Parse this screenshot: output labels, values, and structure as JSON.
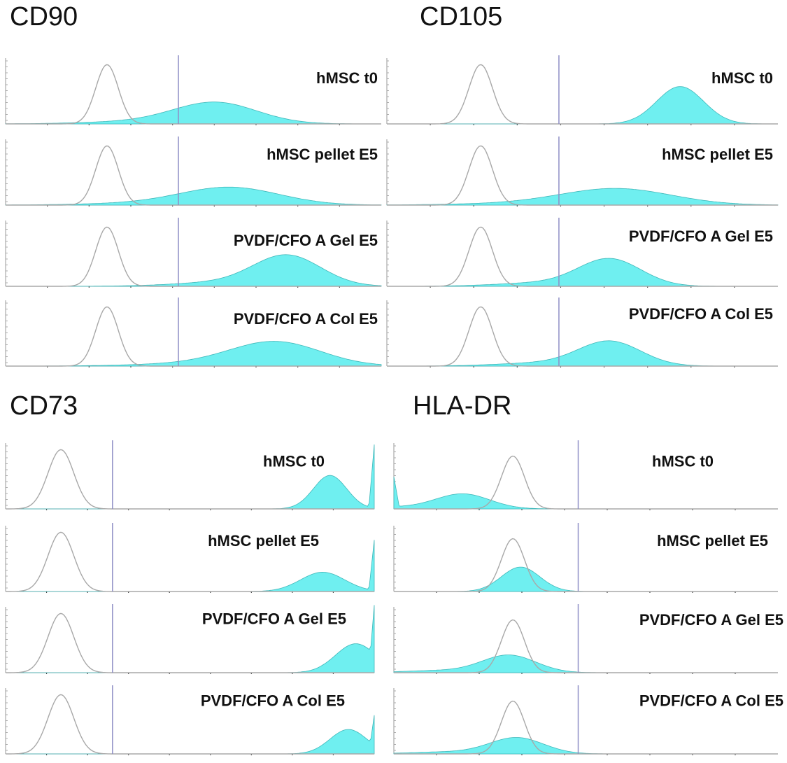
{
  "colors": {
    "fill": "#6FEFF0",
    "fill_stroke": "#3fb7b9",
    "control": "#a8a8a8",
    "gate": "#8f8fc6",
    "axis": "#9a9a9a"
  },
  "chart_data": [
    {
      "type": "area",
      "title": "CD90",
      "x_range": [
        0,
        1
      ],
      "gate": 0.46,
      "rows": [
        {
          "label": "hMSC t0",
          "control": {
            "mu": 0.27,
            "sigma": 0.03,
            "amp": 0.92
          },
          "sample": {
            "mu": 0.56,
            "sigma": 0.11,
            "amp": 0.32
          }
        },
        {
          "label": "hMSC pellet E5",
          "control": {
            "mu": 0.27,
            "sigma": 0.03,
            "amp": 0.92
          },
          "sample": {
            "mu": 0.6,
            "sigma": 0.13,
            "amp": 0.26
          }
        },
        {
          "label": "PVDF/CFO A  Gel E5",
          "control": {
            "mu": 0.27,
            "sigma": 0.03,
            "amp": 0.92
          },
          "sample": {
            "mu": 0.75,
            "sigma": 0.09,
            "amp": 0.47
          }
        },
        {
          "label": "PVDF/CFO A  Col E5",
          "control": {
            "mu": 0.27,
            "sigma": 0.03,
            "amp": 0.92
          },
          "sample": {
            "mu": 0.72,
            "sigma": 0.12,
            "amp": 0.36
          }
        }
      ]
    },
    {
      "type": "area",
      "title": "CD105",
      "x_range": [
        0,
        1
      ],
      "gate": 0.44,
      "rows": [
        {
          "label": "hMSC t0",
          "control": {
            "mu": 0.24,
            "sigma": 0.03,
            "amp": 0.92
          },
          "sample": {
            "mu": 0.75,
            "sigma": 0.06,
            "amp": 0.58
          }
        },
        {
          "label": "hMSC pellet E5",
          "control": {
            "mu": 0.24,
            "sigma": 0.03,
            "amp": 0.92
          },
          "sample": {
            "mu": 0.59,
            "sigma": 0.14,
            "amp": 0.24
          }
        },
        {
          "label": "PVDF/CFO A  Gel E5",
          "control": {
            "mu": 0.24,
            "sigma": 0.03,
            "amp": 0.92
          },
          "sample": {
            "mu": 0.57,
            "sigma": 0.08,
            "amp": 0.42
          }
        },
        {
          "label": "PVDF/CFO A  Col E5",
          "control": {
            "mu": 0.24,
            "sigma": 0.03,
            "amp": 0.92
          },
          "sample": {
            "mu": 0.57,
            "sigma": 0.08,
            "amp": 0.38
          }
        }
      ]
    },
    {
      "type": "area",
      "title": "CD73",
      "x_range": [
        0,
        1
      ],
      "gate": 0.29,
      "rows": [
        {
          "label": "hMSC t0",
          "control": {
            "mu": 0.15,
            "sigma": 0.035,
            "amp": 0.92
          },
          "sample": {
            "mu": 0.88,
            "sigma": 0.045,
            "amp": 0.52,
            "spike": 1.0
          }
        },
        {
          "label": "hMSC pellet E5",
          "control": {
            "mu": 0.15,
            "sigma": 0.035,
            "amp": 0.92
          },
          "sample": {
            "mu": 0.86,
            "sigma": 0.06,
            "amp": 0.3,
            "spike": 0.8
          }
        },
        {
          "label": "PVDF/CFO A  Gel E5",
          "control": {
            "mu": 0.15,
            "sigma": 0.035,
            "amp": 0.92
          },
          "sample": {
            "mu": 0.95,
            "sigma": 0.055,
            "amp": 0.45,
            "spike": 1.05
          }
        },
        {
          "label": "PVDF/CFO A  Col E5",
          "control": {
            "mu": 0.15,
            "sigma": 0.035,
            "amp": 0.92
          },
          "sample": {
            "mu": 0.93,
            "sigma": 0.05,
            "amp": 0.38,
            "spike": 0.6
          }
        }
      ]
    },
    {
      "type": "area",
      "title": "HLA-DR",
      "x_range": [
        0,
        1
      ],
      "gate": 0.48,
      "rows": [
        {
          "label": "hMSC t0",
          "control": {
            "mu": 0.31,
            "sigma": 0.03,
            "amp": 0.82
          },
          "sample": {
            "mu": 0.18,
            "sigma": 0.07,
            "amp": 0.23,
            "spike_left": 0.5
          }
        },
        {
          "label": "hMSC pellet E5",
          "control": {
            "mu": 0.31,
            "sigma": 0.03,
            "amp": 0.82
          },
          "sample": {
            "mu": 0.33,
            "sigma": 0.05,
            "amp": 0.38
          }
        },
        {
          "label": "PVDF/CFO A  Gel E5",
          "control": {
            "mu": 0.31,
            "sigma": 0.03,
            "amp": 0.82
          },
          "sample": {
            "mu": 0.3,
            "sigma": 0.07,
            "amp": 0.27
          }
        },
        {
          "label": "PVDF/CFO A  Col E5",
          "control": {
            "mu": 0.31,
            "sigma": 0.03,
            "amp": 0.82
          },
          "sample": {
            "mu": 0.32,
            "sigma": 0.07,
            "amp": 0.25
          }
        }
      ]
    }
  ]
}
